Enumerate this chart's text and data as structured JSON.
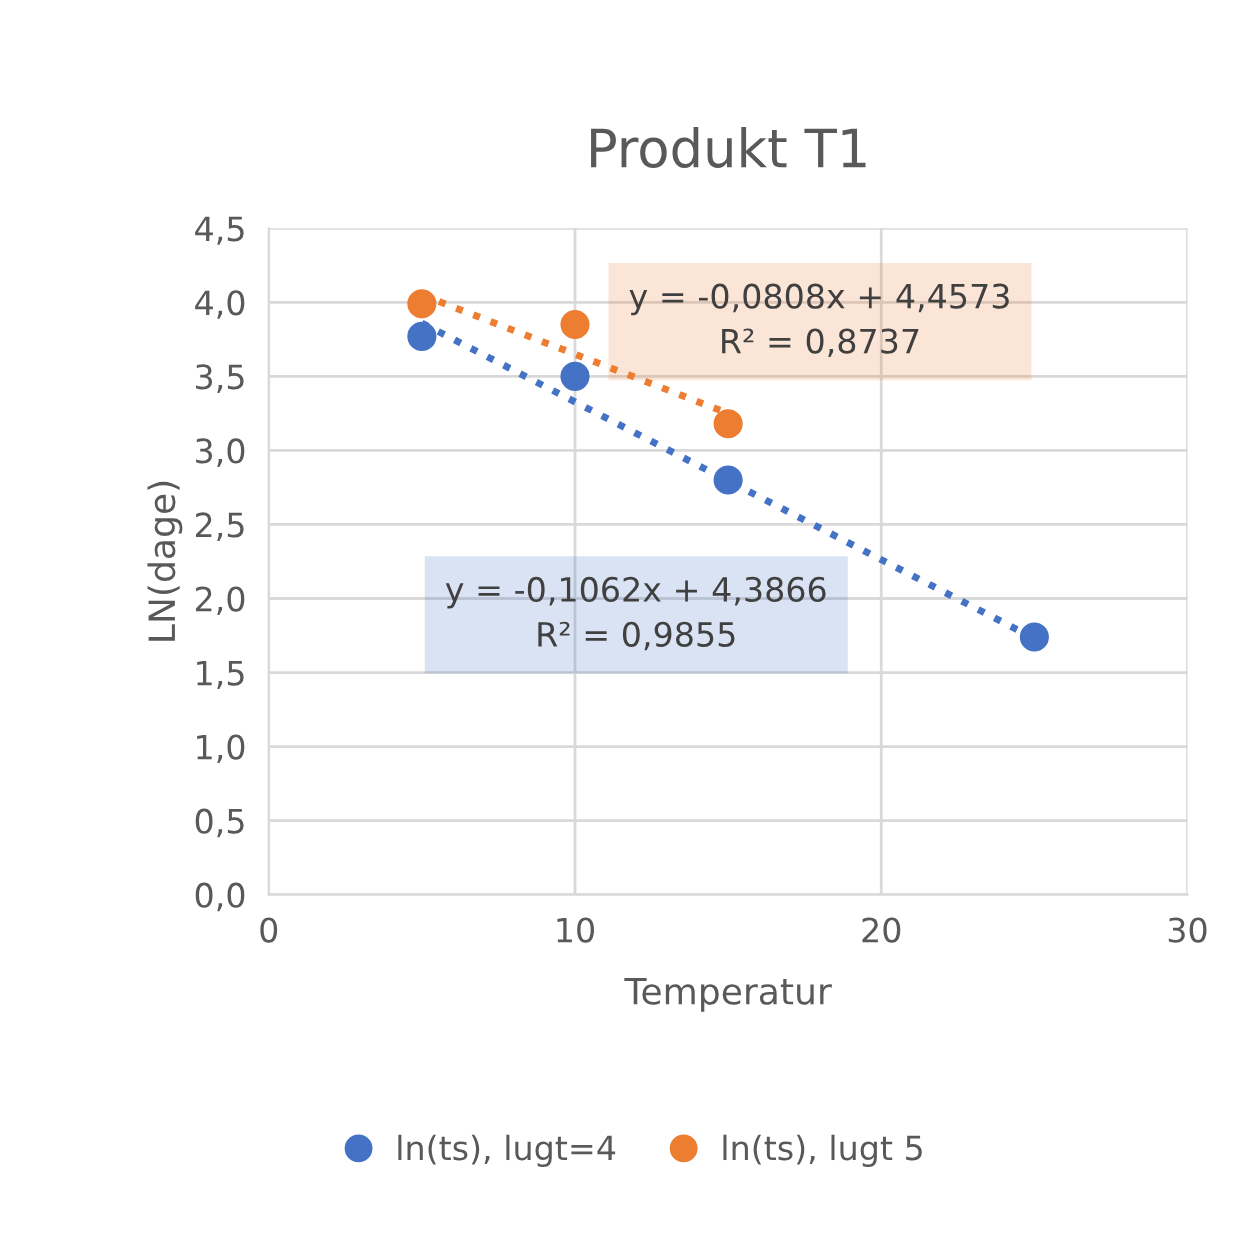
{
  "chart_data": {
    "type": "scatter",
    "title": "Produkt T1",
    "xlabel": "Temperatur",
    "ylabel": "LN(dage)",
    "xlim": [
      0,
      30
    ],
    "xticks": [
      0,
      10,
      20,
      30
    ],
    "ylim": [
      0,
      4.5
    ],
    "yticks": [
      {
        "value": 0,
        "label": "0,0"
      },
      {
        "value": 0.5,
        "label": "0,5"
      },
      {
        "value": 1,
        "label": "1,0"
      },
      {
        "value": 1.5,
        "label": "1,5"
      },
      {
        "value": 2,
        "label": "2,0"
      },
      {
        "value": 2.5,
        "label": "2,5"
      },
      {
        "value": 3,
        "label": "3,0"
      },
      {
        "value": 3.5,
        "label": "3,5"
      },
      {
        "value": 4,
        "label": "4,0"
      },
      {
        "value": 4.5,
        "label": "4,5"
      }
    ],
    "grid": true,
    "legend": "bottom",
    "series": [
      {
        "name": "ln(ts), lugt=4",
        "color": "#4472c4",
        "marker": "circle",
        "x": [
          5,
          10,
          15,
          25
        ],
        "values": [
          3.77,
          3.5,
          2.8,
          1.74
        ]
      },
      {
        "name": "ln(ts), lugt 5",
        "color": "#ed7d31",
        "marker": "circle",
        "x": [
          5,
          10,
          15
        ],
        "values": [
          3.99,
          3.85,
          3.18
        ]
      },
      {
        "type": "line",
        "line_style": "dotted",
        "color": "#4472c4",
        "marker": "none",
        "x": [
          5,
          25
        ],
        "values": [
          3.86,
          1.73
        ]
      },
      {
        "type": "line",
        "line_style": "dotted",
        "color": "#ed7d31",
        "marker": "none",
        "x": [
          5,
          15
        ],
        "values": [
          4.05,
          3.25
        ]
      }
    ],
    "annotations": [
      "y = -0,0808x + 4,4573\nR² = 0,8737",
      "y = -0,1062x + 4,3866\nR² = 0,9855"
    ]
  }
}
